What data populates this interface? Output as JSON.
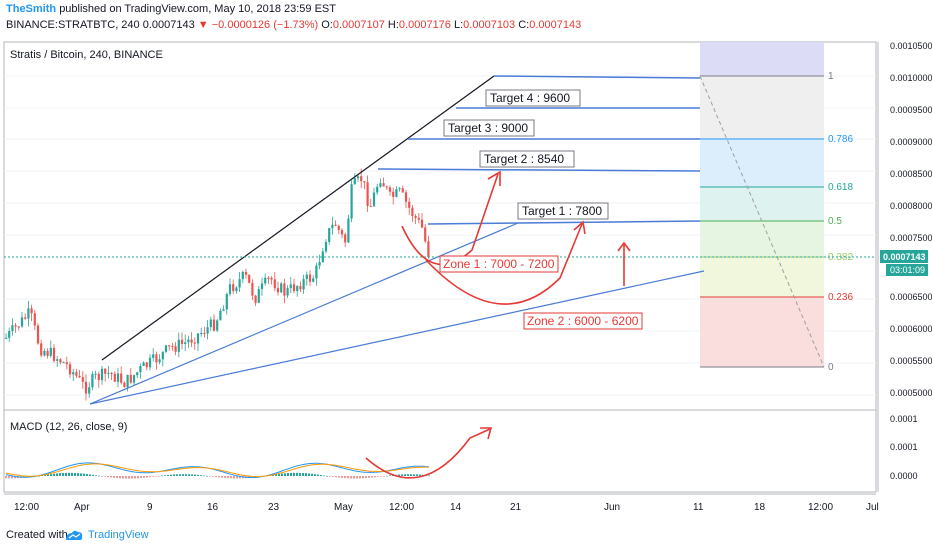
{
  "header": {
    "author": "TheSmith",
    "published": "published on TradingView.com, May 10, 2018 23:59 EST",
    "symbol": "BINANCE:STRATBTC, 240",
    "price": "0.0007143",
    "change": "−0.0000126 (−1.73%)",
    "o_label": "O:",
    "o": "0.0007107",
    "h_label": "H:",
    "h": "0.0007176",
    "l_label": "L:",
    "l": "0.0007103",
    "c_label": "C:",
    "c": "0.0007143"
  },
  "legend": "Stratis / Bitcoin, 240, BINANCE",
  "price_axis": {
    "ticks": [
      "0.0010500",
      "0.0010000",
      "0.0009500",
      "0.0009000",
      "0.0008500",
      "0.0008000",
      "0.0007500",
      "0.0006500",
      "0.0006000",
      "0.0005500",
      "0.0005000"
    ],
    "current_price": "0.0007143",
    "countdown": "03:01:09"
  },
  "macd_axis": {
    "ticks": [
      "0.0001",
      "0.0001",
      "0.0000"
    ]
  },
  "macd_title": "MACD (12, 26, close, 9)",
  "time_axis": [
    "12:00",
    "Apr",
    "9",
    "16",
    "23",
    "May",
    "12:00",
    "14",
    "21",
    "Jun",
    "11",
    "18",
    "12:00",
    "Jul"
  ],
  "fib_levels": [
    {
      "label": "1",
      "color": "#787b86"
    },
    {
      "label": "0.786",
      "color": "#2196f3"
    },
    {
      "label": "0.618",
      "color": "#26a69a"
    },
    {
      "label": "0.5",
      "color": "#4caf50"
    },
    {
      "label": "0.382",
      "color": "#9ccc65"
    },
    {
      "label": "0.236",
      "color": "#e53935"
    },
    {
      "label": "0",
      "color": "#787b86"
    }
  ],
  "annotations": {
    "target4": "Target 4 : 9600",
    "target3": "Target 3 : 9000",
    "target2": "Target 2 : 8540",
    "target1": "Target 1 : 7800",
    "zone1": "Zone 1 : 7000 - 7200",
    "zone2": "Zone 2 : 6000 - 6200"
  },
  "footer": {
    "created": "Created with",
    "brand": "TradingView"
  },
  "colors": {
    "up": "#26a69a",
    "down": "#ef5350",
    "trend": "#4a7bd6",
    "accent": "#2196f3",
    "price_tag": "#26a69a"
  }
}
